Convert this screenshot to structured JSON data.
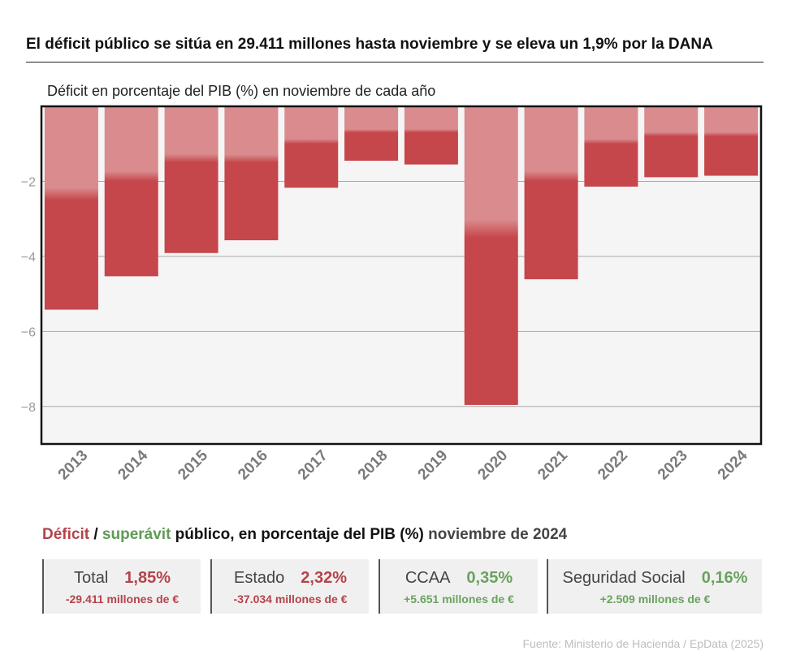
{
  "headline": "El déficit público se sitúa en 29.411 millones hasta noviembre y se eleva un 1,9% por la DANA",
  "chart_data": {
    "type": "bar",
    "title": "Déficit en porcentaje del PIB (%) en noviembre de cada año",
    "categories": [
      "2013",
      "2014",
      "2015",
      "2016",
      "2017",
      "2018",
      "2019",
      "2020",
      "2021",
      "2022",
      "2023",
      "2024"
    ],
    "values": [
      -5.42,
      -4.53,
      -3.91,
      -3.57,
      -2.17,
      -1.45,
      -1.55,
      -7.96,
      -4.61,
      -2.14,
      -1.89,
      -1.85
    ],
    "gradient_band_end": [
      -2.5,
      -2.0,
      -1.5,
      -1.5,
      -1.0,
      -0.7,
      -0.7,
      -3.5,
      -2.0,
      -1.0,
      -0.8,
      -0.8
    ],
    "ylim": [
      -9,
      0
    ],
    "yticks": [
      -2,
      -4,
      -6,
      -8
    ],
    "ytick_labels": [
      "−2",
      "−4",
      "−6",
      "−8"
    ],
    "grid": true,
    "colors": {
      "bar": "#c5464b",
      "bar_light": "#d98b8d",
      "plot_bg": "#f5f5f5"
    }
  },
  "summary": {
    "title_deficit": "Déficit",
    "title_sep": " / ",
    "title_superavit": "superávit",
    "title_mid": " público, en porcentaje del PIB (%) ",
    "title_end": "noviembre de 2024",
    "cards": [
      {
        "label": "Total",
        "value": "1,85%",
        "sub": "-29.411 millones de €",
        "tone": "neg"
      },
      {
        "label": "Estado",
        "value": "2,32%",
        "sub": "-37.034 millones de €",
        "tone": "neg"
      },
      {
        "label": "CCAA",
        "value": "0,35%",
        "sub": "+5.651 millones de €",
        "tone": "pos"
      },
      {
        "label": "Seguridad Social",
        "value": "0,16%",
        "sub": "+2.509 millones de €",
        "tone": "pos"
      }
    ]
  },
  "source": "Fuente: Ministerio de Hacienda / EpData (2025)"
}
